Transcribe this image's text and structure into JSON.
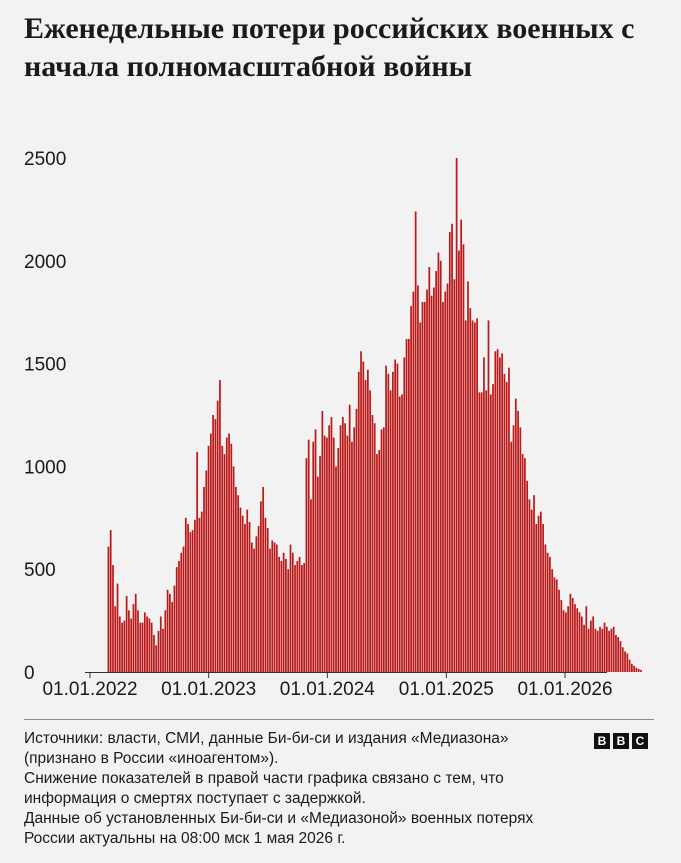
{
  "title": "Еженедельные потери российских военных с начала полномасштабной войны",
  "footer": {
    "source_line1": "Источники: власти, СМИ, данные Би-би-си и издания «Медиазона»",
    "source_line2": "(признано в России «иноагентом»).",
    "note1": "Снижение показателей в правой части графика связано с тем, что информация о смертях поступает с задержкой.",
    "note2": "Данные об установленных Би-би-си и «Медиазоной» военных потерях России актуальны на 08:00 мск 1 мая 2026 г."
  },
  "logo": {
    "letters": [
      "B",
      "B",
      "C"
    ]
  },
  "chart_data": {
    "type": "bar",
    "title": "Еженедельные потери российских военных с начала полномасштабной войны",
    "xlabel": "",
    "ylabel": "",
    "ylim": [
      0,
      2500
    ],
    "yticks": [
      "0",
      "500",
      "1000",
      "1500",
      "2000",
      "2500"
    ],
    "yticks_values": [
      0,
      500,
      1000,
      1500,
      2000,
      2500
    ],
    "xticks": [
      "01.01.2022",
      "01.01.2023",
      "01.01.2024",
      "01.01.2025",
      "01.01.2026"
    ],
    "x_range": [
      "2022-01-01",
      "2026-05-01"
    ],
    "first_week": "2022-02-24",
    "bar_color": "#bb1919",
    "grid": false,
    "values": [
      610,
      690,
      520,
      320,
      430,
      270,
      240,
      250,
      370,
      300,
      260,
      330,
      380,
      300,
      240,
      240,
      290,
      270,
      260,
      240,
      180,
      130,
      200,
      270,
      210,
      300,
      400,
      380,
      340,
      420,
      510,
      540,
      580,
      610,
      750,
      720,
      680,
      690,
      740,
      1070,
      750,
      780,
      900,
      980,
      1100,
      1160,
      1250,
      1230,
      1320,
      1420,
      1100,
      1060,
      1140,
      1160,
      1110,
      1000,
      900,
      860,
      800,
      760,
      720,
      790,
      730,
      630,
      600,
      660,
      710,
      830,
      900,
      750,
      700,
      600,
      640,
      630,
      620,
      560,
      540,
      580,
      550,
      500,
      620,
      580,
      520,
      540,
      560,
      520,
      530,
      1040,
      1130,
      840,
      1120,
      1180,
      950,
      1050,
      1270,
      1150,
      1140,
      1200,
      1240,
      1140,
      1000,
      1090,
      1200,
      1240,
      1210,
      1150,
      1300,
      1120,
      1190,
      1280,
      1460,
      1560,
      1510,
      1420,
      1470,
      1370,
      1250,
      1210,
      1060,
      1080,
      1180,
      1190,
      1490,
      1450,
      1370,
      1460,
      1520,
      1500,
      1340,
      1350,
      1530,
      1620,
      1620,
      1780,
      1850,
      2240,
      1880,
      1700,
      1800,
      1800,
      1860,
      1970,
      1830,
      1870,
      1950,
      2040,
      2000,
      1800,
      1850,
      1890,
      2140,
      2180,
      1910,
      2500,
      2050,
      2200,
      2080,
      1710,
      1900,
      1770,
      1710,
      1700,
      1720,
      1360,
      1360,
      1530,
      1370,
      1710,
      1350,
      1400,
      1560,
      1570,
      1530,
      1550,
      1450,
      1410,
      1480,
      1120,
      1200,
      1330,
      1270,
      1190,
      1060,
      1040,
      930,
      840,
      790,
      860,
      720,
      760,
      780,
      720,
      620,
      580,
      560,
      500,
      460,
      450,
      400,
      350,
      300,
      290,
      320,
      380,
      360,
      330,
      310,
      290,
      270,
      230,
      320,
      210,
      250,
      270,
      210,
      200,
      220,
      210,
      240,
      220,
      200,
      210,
      220,
      180,
      170,
      150,
      120,
      100,
      90,
      60,
      40,
      30,
      20,
      15,
      10
    ]
  }
}
